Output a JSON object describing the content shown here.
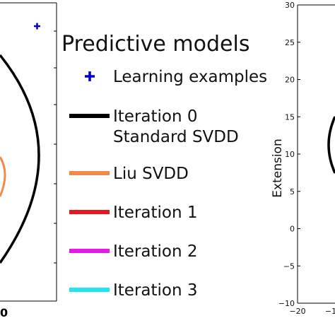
{
  "chart_data": [
    {
      "type": "line",
      "panel": "left (cropped)",
      "xlim": [
        null,
        null
      ],
      "ylim": [
        null,
        null
      ],
      "x_tick_label_visible": "0",
      "series": [
        {
          "name": "Learning examples",
          "marker": "plus",
          "color": "#0000cc"
        },
        {
          "name": "Iteration 0 Standard SVDD",
          "color": "#000000"
        },
        {
          "name": "Liu SVDD",
          "color": "#f08a4b"
        }
      ]
    },
    {
      "type": "line",
      "panel": "right (cropped)",
      "ylabel": "Extension",
      "xlim": [
        -20,
        null
      ],
      "ylim": [
        -10,
        30
      ],
      "y_ticks": [
        "30",
        "25",
        "20",
        "15",
        "10",
        "5",
        "0",
        "−5",
        "−10"
      ],
      "x_ticks": [
        "−20",
        "−1"
      ],
      "series": [
        {
          "name": "Iteration 0 Standard SVDD",
          "color": "#000000"
        }
      ]
    }
  ],
  "legend": {
    "title": "Predictive models",
    "items": [
      {
        "label_lines": [
          "Learning examples"
        ],
        "symbol": "plus",
        "color": "#0000cc"
      },
      {
        "label_lines": [
          "Iteration 0",
          "Standard SVDD"
        ],
        "symbol": "line",
        "color": "#000000"
      },
      {
        "label_lines": [
          "Liu SVDD"
        ],
        "symbol": "line",
        "color": "#f08a4b"
      },
      {
        "label_lines": [
          "Iteration 1"
        ],
        "symbol": "line",
        "color": "#e8151b"
      },
      {
        "label_lines": [
          "Iteration 2"
        ],
        "symbol": "line",
        "color": "#e61ae6"
      },
      {
        "label_lines": [
          "Iteration 3"
        ],
        "symbol": "line",
        "color": "#1fe6ee"
      }
    ]
  }
}
